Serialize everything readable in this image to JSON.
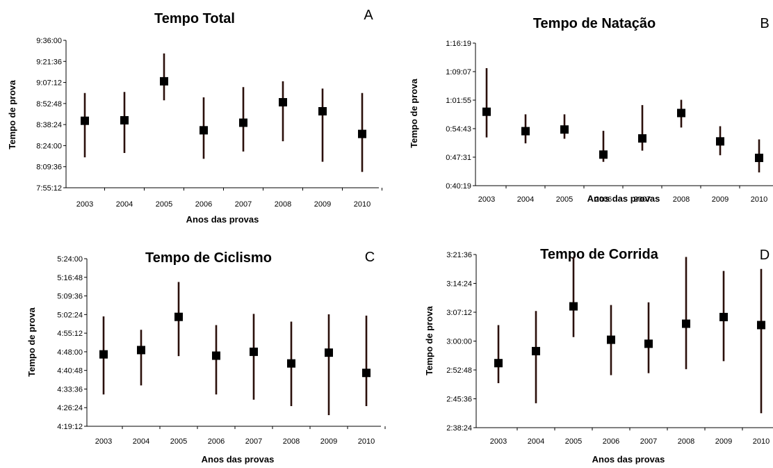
{
  "chart_data": [
    {
      "type": "scatter",
      "panel_letter": "A",
      "title": "Tempo Total",
      "xlabel": "Anos das provas",
      "ylabel": "Tempo de prova",
      "categories": [
        "2003",
        "2004",
        "2005",
        "2006",
        "2007",
        "2008",
        "2009",
        "2010"
      ],
      "yticks": [
        "7:55:12",
        "8:09:36",
        "8:24:00",
        "8:38:24",
        "8:52:48",
        "9:07:12",
        "9:21:36",
        "9:36:00"
      ],
      "ylim": [
        "7:55:12",
        "9:36:00"
      ],
      "points": [
        {
          "x": "2003",
          "mean": "8:41:00",
          "low": "8:16:00",
          "high": "9:00:00"
        },
        {
          "x": "2004",
          "mean": "8:41:20",
          "low": "8:19:00",
          "high": "9:00:40"
        },
        {
          "x": "2005",
          "mean": "9:08:00",
          "low": "8:55:00",
          "high": "9:27:00"
        },
        {
          "x": "2006",
          "mean": "8:34:30",
          "low": "8:15:00",
          "high": "8:57:00"
        },
        {
          "x": "2007",
          "mean": "8:39:40",
          "low": "8:20:00",
          "high": "9:04:00"
        },
        {
          "x": "2008",
          "mean": "8:53:40",
          "low": "8:27:00",
          "high": "9:08:00"
        },
        {
          "x": "2009",
          "mean": "8:47:30",
          "low": "8:13:00",
          "high": "9:03:00"
        },
        {
          "x": "2010",
          "mean": "8:32:00",
          "low": "8:06:00",
          "high": "9:00:00"
        }
      ],
      "grid": false
    },
    {
      "type": "scatter",
      "panel_letter": "B",
      "title": "Tempo de Natação",
      "xlabel": "Anos das provas",
      "ylabel": "Tempo de prova",
      "categories": [
        "2003",
        "2004",
        "2005",
        "2006",
        "2007",
        "2008",
        "2009",
        "2010"
      ],
      "yticks": [
        "0:40:19",
        "0:47:31",
        "0:54:43",
        "1:01:55",
        "1:09:07",
        "1:16:19"
      ],
      "ylim": [
        "0:40:19",
        "1:16:19"
      ],
      "points": [
        {
          "x": "2003",
          "mean": "0:58:59",
          "low": "0:52:30",
          "high": "1:10:00"
        },
        {
          "x": "2004",
          "mean": "0:54:05",
          "low": "0:51:00",
          "high": "0:58:20"
        },
        {
          "x": "2005",
          "mean": "0:54:30",
          "low": "0:52:10",
          "high": "0:58:20"
        },
        {
          "x": "2006",
          "mean": "0:48:10",
          "low": "0:46:20",
          "high": "0:54:10"
        },
        {
          "x": "2007",
          "mean": "0:52:15",
          "low": "0:49:10",
          "high": "1:00:40"
        },
        {
          "x": "2008",
          "mean": "0:58:40",
          "low": "0:55:00",
          "high": "1:02:00"
        },
        {
          "x": "2009",
          "mean": "0:51:30",
          "low": "0:48:00",
          "high": "0:55:20"
        },
        {
          "x": "2010",
          "mean": "0:47:20",
          "low": "0:43:40",
          "high": "0:52:00"
        }
      ],
      "grid": false
    },
    {
      "type": "scatter",
      "panel_letter": "C",
      "title": "Tempo de Ciclismo",
      "xlabel": "Anos das provas",
      "ylabel": "Tempo de prova",
      "categories": [
        "2003",
        "2004",
        "2005",
        "2006",
        "2007",
        "2008",
        "2009",
        "2010"
      ],
      "yticks": [
        "4:19:12",
        "4:26:24",
        "4:33:36",
        "4:40:48",
        "4:48:00",
        "4:55:12",
        "5:02:24",
        "5:09:36",
        "5:16:48",
        "5:24:00"
      ],
      "ylim": [
        "4:19:12",
        "5:24:00"
      ],
      "points": [
        {
          "x": "2003",
          "mean": "4:47:00",
          "low": "4:31:30",
          "high": "5:01:40"
        },
        {
          "x": "2004",
          "mean": "4:48:40",
          "low": "4:35:00",
          "high": "4:56:30"
        },
        {
          "x": "2005",
          "mean": "5:01:30",
          "low": "4:46:20",
          "high": "5:15:00"
        },
        {
          "x": "2006",
          "mean": "4:46:30",
          "low": "4:31:30",
          "high": "4:58:20"
        },
        {
          "x": "2007",
          "mean": "4:48:00",
          "low": "4:29:30",
          "high": "5:02:40"
        },
        {
          "x": "2008",
          "mean": "4:43:30",
          "low": "4:27:00",
          "high": "4:59:40"
        },
        {
          "x": "2009",
          "mean": "4:47:40",
          "low": "4:23:30",
          "high": "5:02:30"
        },
        {
          "x": "2010",
          "mean": "4:39:50",
          "low": "4:27:00",
          "high": "5:02:00"
        }
      ],
      "grid": false
    },
    {
      "type": "scatter",
      "panel_letter": "D",
      "title": "Tempo de Corrida",
      "xlabel": "Anos das provas",
      "ylabel": "Tempo de prova",
      "categories": [
        "2003",
        "2004",
        "2005",
        "2006",
        "2007",
        "2008",
        "2009",
        "2010"
      ],
      "yticks": [
        "2:38:24",
        "2:45:36",
        "2:52:48",
        "3:00:00",
        "3:07:12",
        "3:14:24",
        "3:21:36"
      ],
      "ylim": [
        "2:38:24",
        "3:21:36"
      ],
      "points": [
        {
          "x": "2003",
          "mean": "2:54:30",
          "low": "2:49:30",
          "high": "3:04:00"
        },
        {
          "x": "2004",
          "mean": "2:57:30",
          "low": "2:44:30",
          "high": "3:07:30"
        },
        {
          "x": "2005",
          "mean": "3:08:40",
          "low": "3:01:00",
          "high": "3:21:00"
        },
        {
          "x": "2006",
          "mean": "3:00:20",
          "low": "2:51:30",
          "high": "3:09:00"
        },
        {
          "x": "2007",
          "mean": "2:59:20",
          "low": "2:52:00",
          "high": "3:09:40"
        },
        {
          "x": "2008",
          "mean": "3:04:20",
          "low": "2:53:00",
          "high": "3:21:00"
        },
        {
          "x": "2009",
          "mean": "3:06:00",
          "low": "2:55:00",
          "high": "3:17:30"
        },
        {
          "x": "2010",
          "mean": "3:04:00",
          "low": "2:42:00",
          "high": "3:18:00"
        }
      ],
      "grid": false
    }
  ],
  "colors": {
    "error_bar": "#2a0f0a",
    "marker": "#000000",
    "axis": "#000000"
  }
}
